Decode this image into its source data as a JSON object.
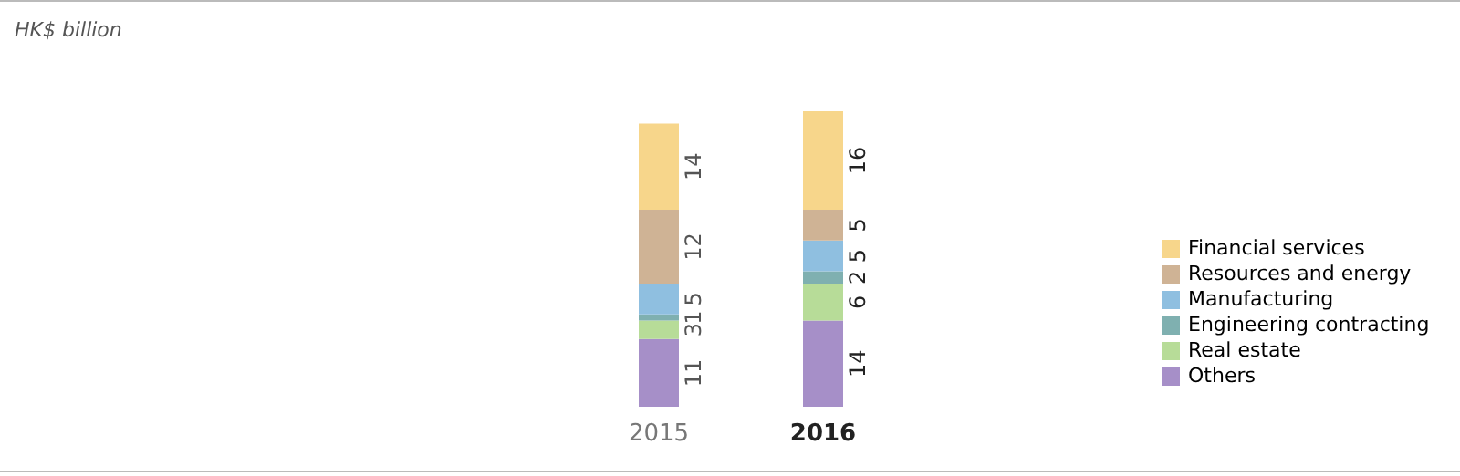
{
  "chart_data": {
    "type": "bar",
    "annotations": [
      "HK$ billion"
    ],
    "categories": [
      "2015",
      "2016"
    ],
    "stacked": true,
    "data_labels": true,
    "legend": "right",
    "series": [
      {
        "name": "Others",
        "color": "#a68fc8",
        "values": [
          11,
          14
        ]
      },
      {
        "name": "Real estate",
        "color": "#b7dc98",
        "values": [
          3,
          6
        ]
      },
      {
        "name": "Engineering contracting",
        "color": "#7fb0b0",
        "values": [
          1,
          2
        ]
      },
      {
        "name": "Manufacturing",
        "color": "#8fbfe0",
        "values": [
          5,
          5
        ]
      },
      {
        "name": "Resources and energy",
        "color": "#cfb395",
        "values": [
          12,
          5
        ]
      },
      {
        "name": "Financial services",
        "color": "#f7d68b",
        "values": [
          14,
          16
        ]
      }
    ]
  }
}
